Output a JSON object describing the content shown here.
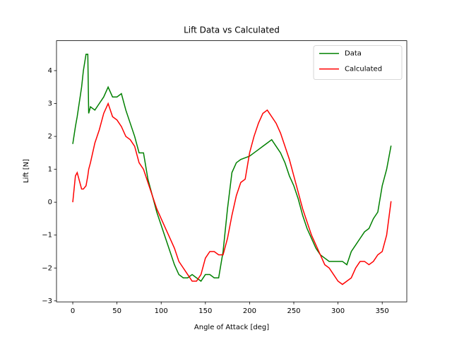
{
  "chart_data": {
    "type": "line",
    "title": "Lift Data vs Calculated",
    "x_label": "Angle of Attack [deg]",
    "y_label": "Lift [N]",
    "x": [
      0,
      3,
      5,
      10,
      12,
      15,
      17,
      18,
      20,
      25,
      30,
      35,
      40,
      45,
      50,
      55,
      60,
      65,
      70,
      75,
      80,
      85,
      90,
      95,
      100,
      105,
      110,
      115,
      120,
      125,
      130,
      135,
      140,
      145,
      150,
      155,
      160,
      165,
      170,
      175,
      180,
      185,
      190,
      195,
      200,
      205,
      210,
      215,
      220,
      225,
      230,
      235,
      240,
      245,
      250,
      255,
      260,
      265,
      270,
      275,
      280,
      285,
      290,
      295,
      300,
      305,
      310,
      315,
      320,
      325,
      330,
      335,
      340,
      345,
      350,
      355,
      360
    ],
    "series": [
      {
        "name": "Data",
        "color": "#008000",
        "values": [
          1.77,
          2.3,
          2.6,
          3.5,
          4.0,
          4.5,
          4.5,
          2.7,
          2.9,
          2.8,
          3.0,
          3.2,
          3.5,
          3.2,
          3.2,
          3.3,
          2.8,
          2.4,
          2.0,
          1.5,
          1.5,
          0.7,
          0.2,
          -0.3,
          -0.7,
          -1.1,
          -1.5,
          -1.9,
          -2.2,
          -2.3,
          -2.3,
          -2.2,
          -2.3,
          -2.4,
          -2.2,
          -2.2,
          -2.3,
          -2.3,
          -1.5,
          -0.2,
          0.9,
          1.2,
          1.3,
          1.35,
          1.4,
          1.5,
          1.6,
          1.7,
          1.8,
          1.9,
          1.7,
          1.5,
          1.2,
          0.8,
          0.5,
          0.1,
          -0.4,
          -0.8,
          -1.1,
          -1.4,
          -1.6,
          -1.7,
          -1.8,
          -1.8,
          -1.8,
          -1.8,
          -1.9,
          -1.5,
          -1.3,
          -1.1,
          -0.9,
          -0.8,
          -0.5,
          -0.3,
          0.5,
          1.0,
          1.72
        ]
      },
      {
        "name": "Calculated",
        "color": "#ff0000",
        "values": [
          0,
          0.8,
          0.9,
          0.4,
          0.4,
          0.5,
          0.8,
          1.0,
          1.2,
          1.8,
          2.2,
          2.7,
          3.0,
          2.6,
          2.5,
          2.3,
          2.0,
          1.9,
          1.7,
          1.2,
          1.0,
          0.6,
          0.2,
          -0.2,
          -0.5,
          -0.8,
          -1.1,
          -1.4,
          -1.8,
          -2.0,
          -2.2,
          -2.4,
          -2.4,
          -2.2,
          -1.7,
          -1.5,
          -1.5,
          -1.6,
          -1.6,
          -1.1,
          -0.4,
          0.2,
          0.6,
          0.7,
          1.5,
          2.0,
          2.4,
          2.7,
          2.8,
          2.6,
          2.4,
          2.1,
          1.7,
          1.3,
          0.8,
          0.3,
          -0.2,
          -0.6,
          -1.0,
          -1.3,
          -1.6,
          -1.9,
          -2.0,
          -2.2,
          -2.4,
          -2.5,
          -2.4,
          -2.3,
          -2.0,
          -1.8,
          -1.8,
          -1.9,
          -1.8,
          -1.6,
          -1.5,
          -1.0,
          0.03
        ]
      }
    ],
    "xlim": [
      -18.4,
      377.8
    ],
    "ylim": [
      -3.03,
      4.91
    ],
    "xticks": [
      0,
      50,
      100,
      150,
      200,
      250,
      300,
      350
    ],
    "yticks": [
      {
        "value": -3,
        "label": "−3"
      },
      {
        "value": -2,
        "label": "−2"
      },
      {
        "value": -1,
        "label": "−1"
      },
      0,
      1,
      2,
      3,
      4
    ],
    "legend": "upper right"
  }
}
